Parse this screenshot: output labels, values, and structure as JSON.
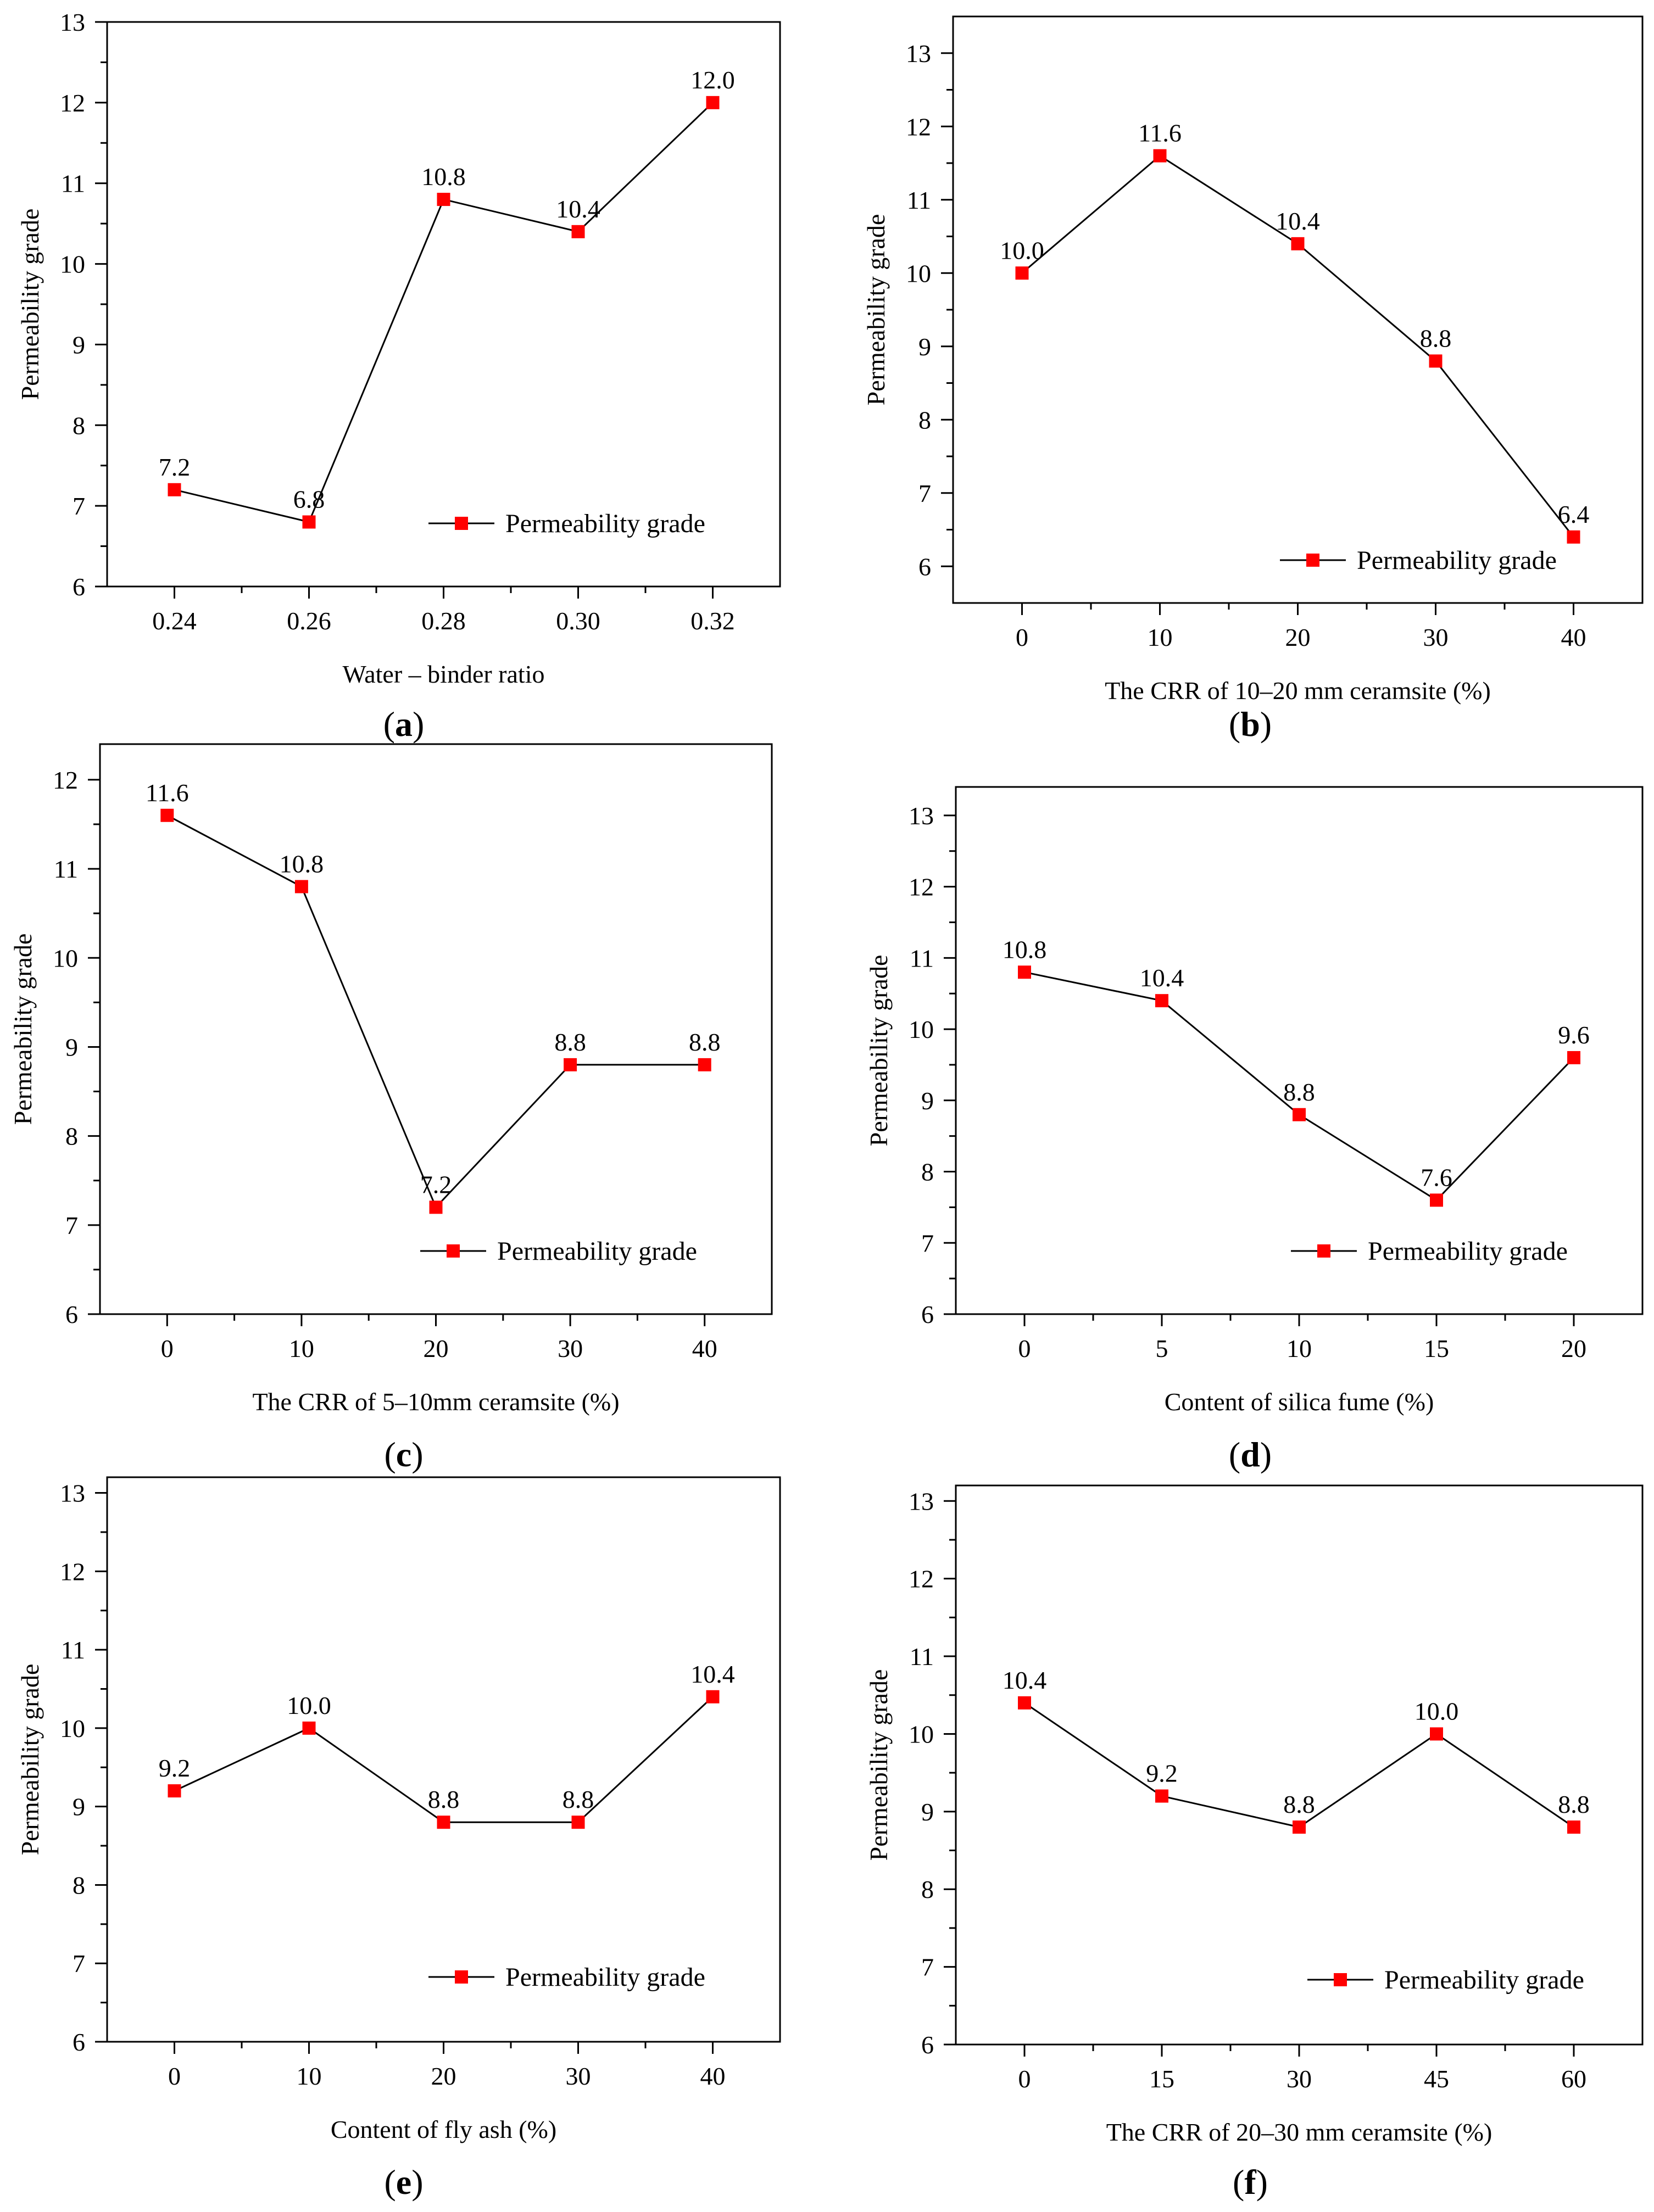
{
  "figure": {
    "colors": {
      "marker": "#ff0000",
      "line": "#000000",
      "axis": "#000000"
    }
  },
  "chart_data": [
    {
      "panel": "a",
      "type": "line",
      "x": [
        0.24,
        0.26,
        0.28,
        0.3,
        0.32
      ],
      "x_tick_labels": [
        "0.24",
        "0.26",
        "0.28",
        "0.30",
        "0.32"
      ],
      "xlim": [
        0.23,
        0.33
      ],
      "series": [
        {
          "name": "Permeability grade",
          "values": [
            7.2,
            6.8,
            10.8,
            10.4,
            12.0
          ],
          "labels": [
            "7.2",
            "6.8",
            "10.8",
            "10.4",
            "12.0"
          ]
        }
      ],
      "ylim": [
        6,
        13
      ],
      "y_ticks": [
        6,
        7,
        8,
        9,
        10,
        11,
        12,
        13
      ],
      "xlabel": "Water – binder ratio",
      "ylabel": "Permeability grade",
      "legend": "bottom-right",
      "grid": false
    },
    {
      "panel": "b",
      "type": "line",
      "x": [
        0,
        10,
        20,
        30,
        40
      ],
      "x_tick_labels": [
        "0",
        "10",
        "20",
        "30",
        "40"
      ],
      "xlim": [
        -5,
        45
      ],
      "series": [
        {
          "name": "Permeability grade",
          "values": [
            10.0,
            11.6,
            10.4,
            8.8,
            6.4
          ],
          "labels": [
            "10.0",
            "11.6",
            "10.4",
            "8.8",
            "6.4"
          ]
        }
      ],
      "ylim": [
        5.5,
        13.5
      ],
      "y_ticks": [
        6,
        7,
        8,
        9,
        10,
        11,
        12,
        13
      ],
      "xlabel": "The CRR of 10–20 mm ceramsite (%)",
      "ylabel": "Permeability grade",
      "legend": "bottom-right",
      "grid": false
    },
    {
      "panel": "c",
      "type": "line",
      "x": [
        0,
        10,
        20,
        30,
        40
      ],
      "x_tick_labels": [
        "0",
        "10",
        "20",
        "30",
        "40"
      ],
      "xlim": [
        -5,
        45
      ],
      "series": [
        {
          "name": "Permeability grade",
          "values": [
            11.6,
            10.8,
            7.2,
            8.8,
            8.8
          ],
          "labels": [
            "11.6",
            "10.8",
            "7.2",
            "8.8",
            "8.8"
          ]
        }
      ],
      "ylim": [
        6,
        12.4
      ],
      "y_ticks": [
        6,
        7,
        8,
        9,
        10,
        11,
        12
      ],
      "xlabel": "The CRR of 5–10mm ceramsite (%)",
      "ylabel": "Permeability grade",
      "legend": "bottom-right",
      "grid": false
    },
    {
      "panel": "d",
      "type": "line",
      "x": [
        0,
        5,
        10,
        15,
        20
      ],
      "x_tick_labels": [
        "0",
        "5",
        "10",
        "15",
        "20"
      ],
      "xlim": [
        -2.5,
        22.5
      ],
      "series": [
        {
          "name": "Permeability grade",
          "values": [
            10.8,
            10.4,
            8.8,
            7.6,
            9.6
          ],
          "labels": [
            "10.8",
            "10.4",
            "8.8",
            "7.6",
            "9.6"
          ]
        }
      ],
      "ylim": [
        6,
        13.4
      ],
      "y_ticks": [
        6,
        7,
        8,
        9,
        10,
        11,
        12,
        13
      ],
      "xlabel": "Content of  silica fume (%)",
      "ylabel": "Permeability grade",
      "legend": "bottom-right",
      "grid": false
    },
    {
      "panel": "e",
      "type": "line",
      "x": [
        0,
        10,
        20,
        30,
        40
      ],
      "x_tick_labels": [
        "0",
        "10",
        "20",
        "30",
        "40"
      ],
      "xlim": [
        -5,
        45
      ],
      "series": [
        {
          "name": "Permeability grade",
          "values": [
            9.2,
            10.0,
            8.8,
            8.8,
            10.4
          ],
          "labels": [
            "9.2",
            "10.0",
            "8.8",
            "8.8",
            "10.4"
          ]
        }
      ],
      "ylim": [
        6,
        13.2
      ],
      "y_ticks": [
        6,
        7,
        8,
        9,
        10,
        11,
        12,
        13
      ],
      "xlabel": "Content of fly ash (%)",
      "ylabel": "Permeability grade",
      "legend": "bottom-right",
      "grid": false
    },
    {
      "panel": "f",
      "type": "line",
      "x": [
        0,
        15,
        30,
        45,
        60
      ],
      "x_tick_labels": [
        "0",
        "15",
        "30",
        "45",
        "60"
      ],
      "xlim": [
        -7.5,
        67.5
      ],
      "series": [
        {
          "name": "Permeability grade",
          "values": [
            10.4,
            9.2,
            8.8,
            10.0,
            8.8
          ],
          "labels": [
            "10.4",
            "9.2",
            "8.8",
            "10.0",
            "8.8"
          ]
        }
      ],
      "ylim": [
        6,
        13.2
      ],
      "y_ticks": [
        6,
        7,
        8,
        9,
        10,
        11,
        12,
        13
      ],
      "xlabel": "The CRR of 20–30 mm ceramsite (%)",
      "ylabel": "Permeability grade",
      "legend": "bottom-right",
      "grid": false
    }
  ]
}
